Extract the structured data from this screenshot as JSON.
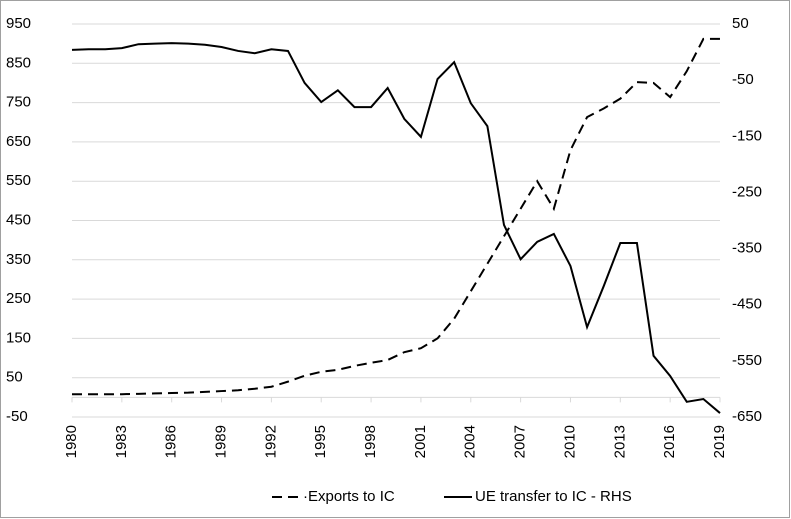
{
  "chart_data": {
    "type": "line",
    "x": [
      1980,
      1981,
      1982,
      1983,
      1984,
      1985,
      1986,
      1987,
      1988,
      1989,
      1990,
      1991,
      1992,
      1993,
      1994,
      1995,
      1996,
      1997,
      1998,
      1999,
      2000,
      2001,
      2002,
      2003,
      2004,
      2005,
      2006,
      2007,
      2008,
      2009,
      2010,
      2011,
      2012,
      2013,
      2014,
      2015,
      2016,
      2017,
      2018,
      2019
    ],
    "xlim": [
      1980,
      2019
    ],
    "xticks": [
      1980,
      1983,
      1986,
      1989,
      1992,
      1995,
      1998,
      2001,
      2004,
      2007,
      2010,
      2013,
      2016,
      2019
    ],
    "ylim": [
      -50,
      950
    ],
    "yticks": [
      -50,
      50,
      150,
      250,
      350,
      450,
      550,
      650,
      750,
      850,
      950
    ],
    "y2lim": [
      -650,
      50
    ],
    "y2ticks": [
      -650,
      -550,
      -450,
      -350,
      -250,
      -150,
      -50,
      50
    ],
    "grid": true,
    "legend": "bottom",
    "series": [
      {
        "name": "·Exports to IC",
        "color": "#000000",
        "line_style": "dashed",
        "axis": "y",
        "values": [
          8,
          8,
          8,
          8,
          9,
          10,
          11,
          12,
          14,
          16,
          18,
          22,
          27,
          40,
          55,
          65,
          70,
          80,
          88,
          95,
          115,
          125,
          150,
          200,
          270,
          340,
          410,
          480,
          550,
          480,
          629,
          713,
          735,
          760,
          802,
          800,
          764,
          830,
          912,
          912
        ]
      },
      {
        "name": "UE transfer to IC - RHS",
        "color": "#000000",
        "line_style": "solid",
        "axis": "y2",
        "values": [
          4,
          5,
          5,
          7,
          14,
          15,
          16,
          15,
          13,
          9,
          2,
          -2,
          5,
          2,
          -55,
          -89,
          -68,
          -98,
          -98,
          -64,
          -119,
          -151,
          -48,
          -18,
          -91,
          -132,
          -308,
          -369,
          -338,
          -324,
          -381,
          -490,
          -417,
          -340,
          -340,
          -541,
          -577,
          -623,
          -618,
          -643
        ]
      }
    ]
  }
}
